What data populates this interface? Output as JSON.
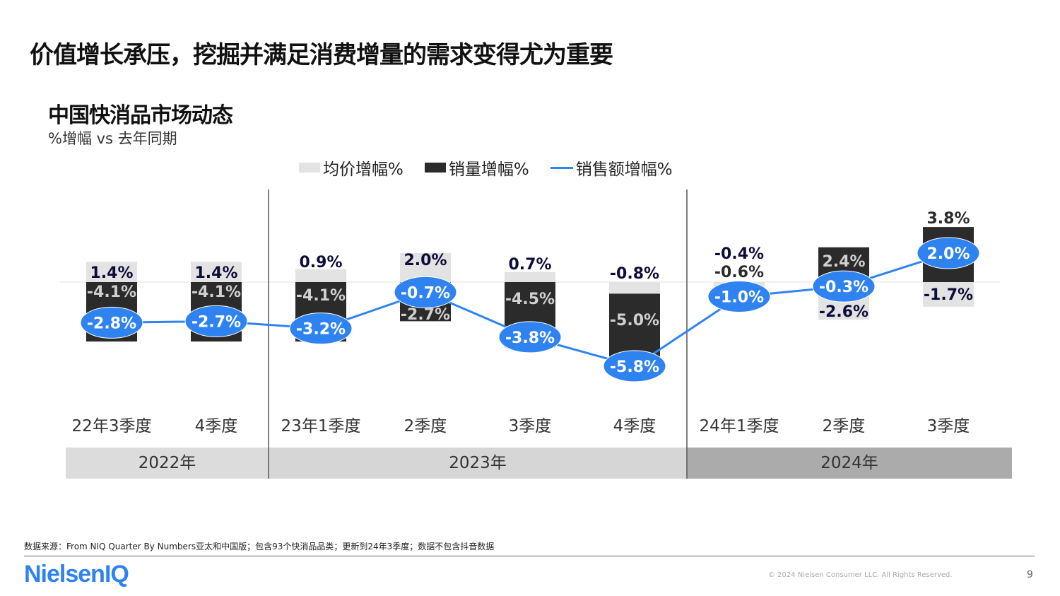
{
  "title": "价值增长承压，挖掘并满足消费增量的需求变得尤为重要",
  "footer": {
    "source": "数据来源：From NIQ Quarter By Numbers亚太和中国版；包含93个快消品品类；更新到24年3季度；数据不包含抖音数据",
    "logo": "NielsenIQ",
    "copyright": "© 2024 Nielsen Consumer LLC. All Rights Reserved.",
    "page": "9"
  },
  "chart_data": {
    "type": "bar",
    "title": "中国快消品市场动态",
    "subtitle": "%增幅 vs 去年同期",
    "legend_position": "top",
    "categories": [
      "22年3季度",
      "4季度",
      "23年1季度",
      "2季度",
      "3季度",
      "4季度",
      "24年1季度",
      "2季度",
      "3季度"
    ],
    "groups": [
      {
        "label": "2022年",
        "count": 2,
        "color": "#dcdcdc"
      },
      {
        "label": "2023年",
        "count": 4,
        "color": "#d6d6d6"
      },
      {
        "label": "2024年",
        "count": 3,
        "color": "#ababab"
      }
    ],
    "series": [
      {
        "name": "均价增幅%",
        "type": "bar",
        "color": "#e3e3e3",
        "values": [
          1.4,
          1.4,
          0.9,
          2.0,
          0.7,
          -0.8,
          -0.4,
          -2.6,
          -1.7
        ]
      },
      {
        "name": "销量增幅%",
        "type": "bar",
        "color": "#2b2b2b",
        "values": [
          -4.1,
          -4.1,
          -4.1,
          -2.7,
          -4.5,
          -5.0,
          -0.6,
          2.4,
          3.8
        ]
      },
      {
        "name": "销售额增幅%",
        "type": "line",
        "color": "#2f83f0",
        "values": [
          -2.8,
          -2.7,
          -3.2,
          -0.7,
          -3.8,
          -5.8,
          -1.0,
          -0.3,
          2.0
        ]
      }
    ],
    "labels": {
      "price": [
        "1.4%",
        "1.4%",
        "0.9%",
        "2.0%",
        "0.7%",
        "-0.8%",
        "-0.4%",
        "-2.6%",
        "-1.7%"
      ],
      "volume": [
        "-4.1%",
        "-4.1%",
        "-4.1%",
        "-2.7%",
        "-4.5%",
        "-5.0%",
        "-0.6%",
        "2.4%",
        "3.8%"
      ],
      "value": [
        "-2.8%",
        "-2.7%",
        "-3.2%",
        "-0.7%",
        "-3.8%",
        "-5.8%",
        "-1.0%",
        "-0.3%",
        "2.0%"
      ]
    },
    "stacked": true,
    "grid": false
  }
}
